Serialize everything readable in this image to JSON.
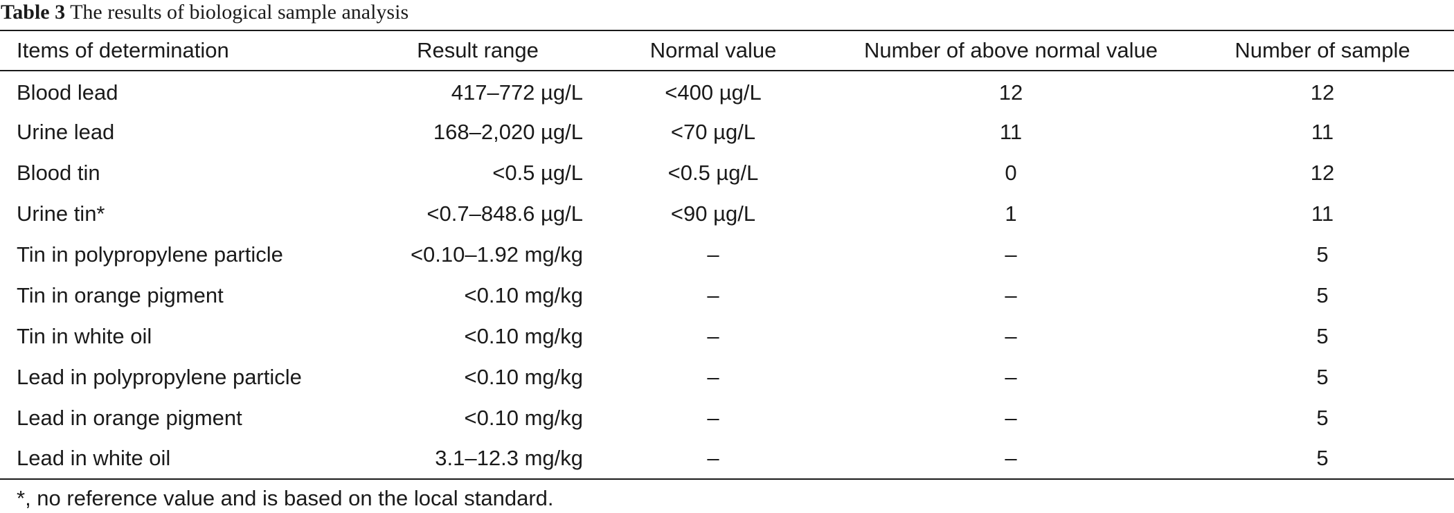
{
  "caption": {
    "label": "Table 3",
    "title": "The results of biological sample analysis"
  },
  "table": {
    "headers": [
      "Items of determination",
      "Result range",
      "Normal value",
      "Number of above normal value",
      "Number of sample"
    ],
    "rows": [
      [
        "Blood lead",
        "417–772 µg/L",
        "<400 µg/L",
        "12",
        "12"
      ],
      [
        "Urine lead",
        "168–2,020 µg/L",
        "<70 µg/L",
        "11",
        "11"
      ],
      [
        "Blood tin",
        "<0.5 µg/L",
        "<0.5 µg/L",
        "0",
        "12"
      ],
      [
        "Urine tin*",
        "<0.7–848.6 µg/L",
        "<90 µg/L",
        "1",
        "11"
      ],
      [
        "Tin in polypropylene particle",
        "<0.10–1.92 mg/kg",
        "–",
        "–",
        "5"
      ],
      [
        "Tin in orange pigment",
        "<0.10 mg/kg",
        "–",
        "–",
        "5"
      ],
      [
        "Tin in white oil",
        "<0.10 mg/kg",
        "–",
        "–",
        "5"
      ],
      [
        "Lead in polypropylene particle",
        "<0.10 mg/kg",
        "–",
        "–",
        "5"
      ],
      [
        "Lead in orange pigment",
        "<0.10 mg/kg",
        "–",
        "–",
        "5"
      ],
      [
        "Lead in white oil",
        "3.1–12.3 mg/kg",
        "–",
        "–",
        "5"
      ]
    ]
  },
  "footnote": "*, no reference value and is based on the local standard."
}
